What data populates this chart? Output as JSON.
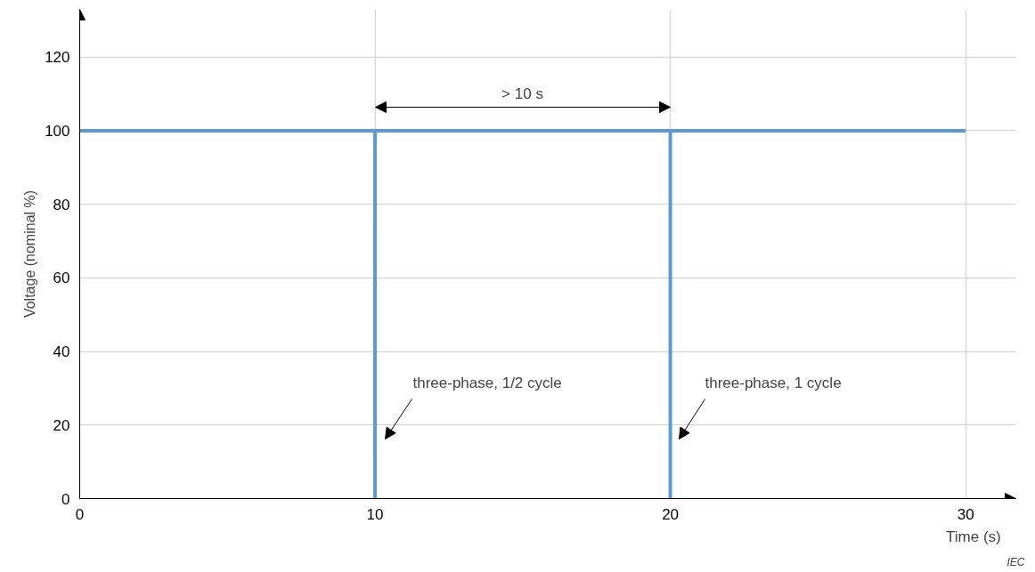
{
  "chart_data": {
    "type": "line",
    "ylabel": "Voltage (nominal %)",
    "xlabel": "Time  (s)",
    "x": [
      0,
      10,
      10,
      10,
      20,
      20,
      20,
      30
    ],
    "series": [
      {
        "color": "#5b9bd5",
        "values": [
          100,
          100,
          0,
          100,
          100,
          0,
          100,
          100
        ]
      }
    ],
    "xlim": [
      0,
      31.7
    ],
    "ylim": [
      0,
      133
    ],
    "xticks": [
      0,
      10,
      20,
      30
    ],
    "yticks": [
      0,
      20,
      40,
      60,
      80,
      100,
      120
    ],
    "grid": true,
    "marker": "none",
    "line_style": "solid",
    "annotations": [
      "> 10 s",
      "three-phase, 1/2 cycle",
      "three-phase, 1 cycle",
      "IEC"
    ]
  }
}
